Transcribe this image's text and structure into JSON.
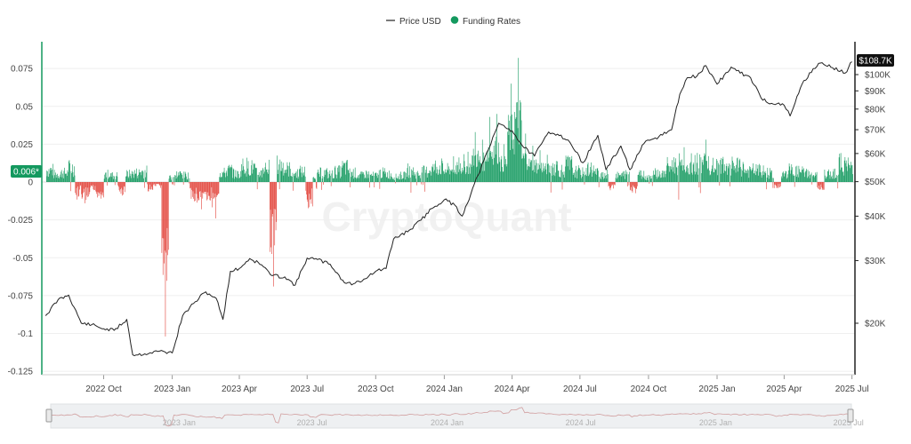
{
  "chart_data": {
    "type": "line",
    "watermark": "CryptoQuant",
    "legend": [
      {
        "name": "Price USD",
        "kind": "line",
        "color": "#222222"
      },
      {
        "name": "Funding Rates",
        "kind": "dot",
        "color": "#14995f"
      }
    ],
    "x_ticks": [
      "2022 Oct",
      "2023 Jan",
      "2023 Apr",
      "2023 Jul",
      "2023 Oct",
      "2024 Jan",
      "2024 Apr",
      "2024 Jul",
      "2024 Oct",
      "2025 Jan",
      "2025 Apr",
      "2025 Jul"
    ],
    "navigator_ticks": [
      "2023 Jan",
      "2023 Jul",
      "2024 Jan",
      "2024 Jul",
      "2025 Jan",
      "2025 Jul"
    ],
    "y_left": {
      "label": "",
      "range": [
        -0.125,
        0.09
      ],
      "ticks": [
        "0.075",
        "0.05",
        "0.025",
        "0",
        "-0.025",
        "-0.05",
        "-0.075",
        "-0.1",
        "-0.125"
      ]
    },
    "y_right": {
      "label": "",
      "scale": "log",
      "range": [
        14000,
        125000
      ],
      "ticks": [
        "$100K",
        "$90K",
        "$80K",
        "$70K",
        "$60K",
        "$50K",
        "$40K",
        "$30K",
        "$20K"
      ]
    },
    "current_funding_label": "0.006*",
    "current_price_label": "$108.7K",
    "colors": {
      "positive": "#14995f",
      "negative": "#e2453c",
      "price": "#222222",
      "axis_left": "#14995f",
      "axis_right": "#222222"
    },
    "series": [
      {
        "name": "Price USD",
        "axis": "right",
        "x": [
          "2022-07-15",
          "2022-08-01",
          "2022-08-15",
          "2022-09-01",
          "2022-09-15",
          "2022-10-01",
          "2022-10-15",
          "2022-11-01",
          "2022-11-09",
          "2022-11-25",
          "2022-12-15",
          "2023-01-01",
          "2023-01-15",
          "2023-02-01",
          "2023-02-15",
          "2023-03-01",
          "2023-03-10",
          "2023-03-20",
          "2023-04-01",
          "2023-04-15",
          "2023-05-01",
          "2023-05-15",
          "2023-06-01",
          "2023-06-15",
          "2023-07-01",
          "2023-07-15",
          "2023-08-01",
          "2023-08-20",
          "2023-09-01",
          "2023-09-15",
          "2023-10-01",
          "2023-10-15",
          "2023-10-25",
          "2023-11-15",
          "2023-12-01",
          "2023-12-15",
          "2024-01-01",
          "2024-01-15",
          "2024-01-25",
          "2024-02-15",
          "2024-03-01",
          "2024-03-14",
          "2024-04-01",
          "2024-04-15",
          "2024-05-01",
          "2024-05-20",
          "2024-06-01",
          "2024-06-15",
          "2024-07-05",
          "2024-07-25",
          "2024-08-05",
          "2024-08-25",
          "2024-09-06",
          "2024-09-25",
          "2024-10-15",
          "2024-11-01",
          "2024-11-12",
          "2024-11-22",
          "2024-12-05",
          "2024-12-17",
          "2025-01-01",
          "2025-01-20",
          "2025-02-01",
          "2025-02-15",
          "2025-03-01",
          "2025-03-15",
          "2025-04-01",
          "2025-04-09",
          "2025-04-25",
          "2025-05-10",
          "2025-05-22",
          "2025-06-05",
          "2025-06-22",
          "2025-07-01"
        ],
        "values": [
          21000,
          23300,
          24000,
          20000,
          19800,
          19300,
          19100,
          20500,
          16300,
          16400,
          16700,
          16500,
          21000,
          23000,
          24500,
          23500,
          20500,
          28000,
          28500,
          30400,
          29200,
          27200,
          27000,
          25600,
          30500,
          30200,
          29300,
          26000,
          25800,
          26600,
          28000,
          28500,
          34500,
          36500,
          39000,
          42000,
          44500,
          43000,
          40000,
          52000,
          62000,
          73000,
          69500,
          63000,
          59000,
          69000,
          68000,
          65500,
          56500,
          67500,
          54000,
          63000,
          54000,
          64000,
          67000,
          70000,
          88000,
          98000,
          99000,
          106000,
          94000,
          105000,
          101000,
          98000,
          86000,
          83000,
          82000,
          76500,
          94000,
          104000,
          108000,
          104500,
          101000,
          108700
        ]
      },
      {
        "name": "Funding Rates",
        "axis": "left",
        "render": "bars",
        "bars_per_sample": 12,
        "values": [
          0.009,
          0.006,
          0.007,
          0.011,
          -0.009,
          -0.012,
          -0.006,
          -0.008,
          0.006,
          0.005,
          -0.007,
          0.006,
          0.007,
          0.008,
          -0.005,
          -0.003,
          -0.102,
          0.004,
          0.006,
          0.005,
          -0.012,
          -0.018,
          -0.01,
          -0.024,
          0.007,
          0.009,
          0.006,
          0.012,
          0.011,
          0.007,
          0.011,
          -0.069,
          0.013,
          0.01,
          0.007,
          0.008,
          -0.014,
          0.006,
          0.007,
          0.006,
          0.008,
          0.011,
          0.007,
          0.005,
          0.006,
          0.005,
          0.007,
          0.006,
          0.004,
          0.005,
          0.009,
          0.006,
          0.008,
          0.01,
          0.012,
          0.009,
          0.017,
          0.014,
          0.02,
          0.033,
          0.028,
          0.043,
          0.045,
          0.025,
          0.065,
          0.082,
          0.032,
          0.024,
          0.021,
          0.018,
          0.012,
          0.009,
          0.013,
          0.008,
          0.007,
          0.01,
          0.007,
          0.006,
          -0.004,
          0.005,
          0.006,
          -0.007,
          0.006,
          0.004,
          0.007,
          0.006,
          0.012,
          0.014,
          0.023,
          0.019,
          0.014,
          0.028,
          0.016,
          0.013,
          0.009,
          0.012,
          0.011,
          0.008,
          0.009,
          0.008,
          0.007,
          -0.003,
          0.006,
          0.009,
          0.008,
          0.007,
          0.005,
          -0.004,
          0.006,
          0.007,
          0.014,
          0.012
        ]
      }
    ]
  }
}
